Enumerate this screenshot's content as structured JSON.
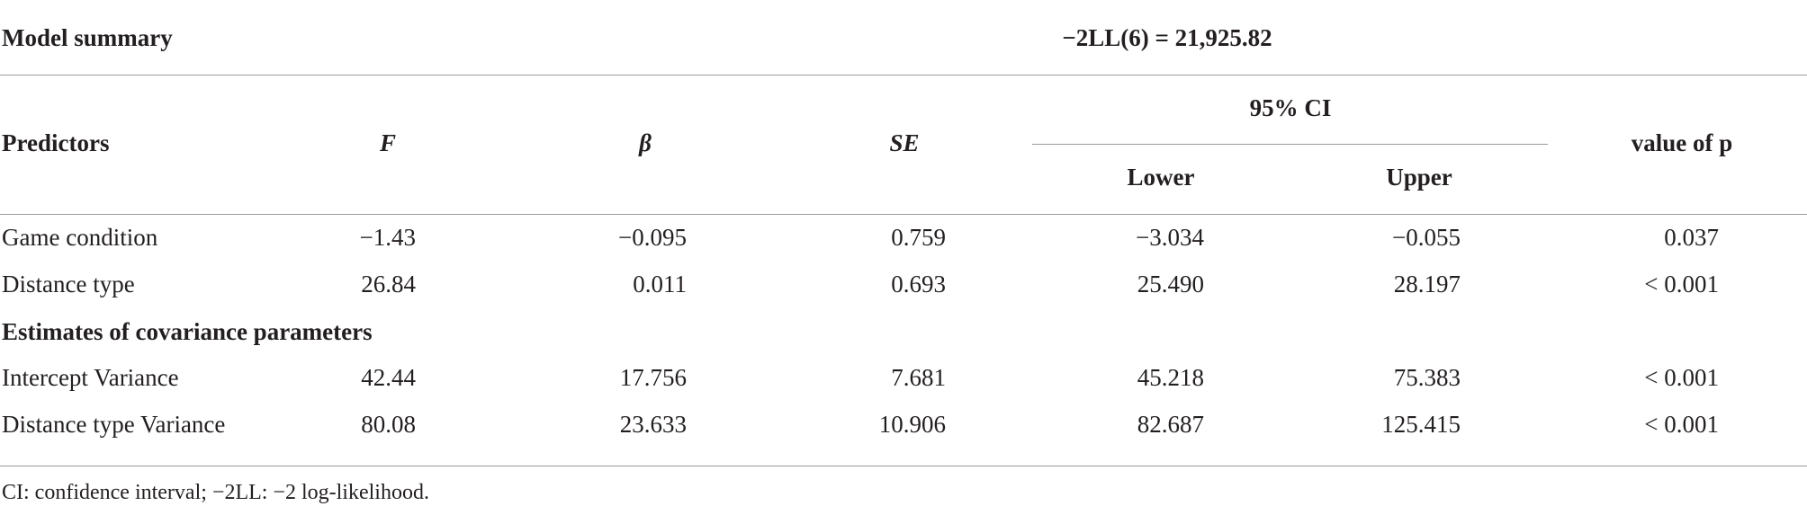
{
  "header": {
    "title": "Model summary",
    "statistic": "−2LL(6) = 21,925.82"
  },
  "table": {
    "columns": [
      "Predictors",
      "F",
      "β",
      "SE",
      "Lower",
      "Upper",
      "value of p"
    ],
    "group_header": "95% CI",
    "rows": [
      [
        "Game condition",
        "−1.43",
        "−0.095",
        "0.759",
        "−3.034",
        "−0.055",
        "0.037"
      ],
      [
        "Distance type",
        "26.84",
        "0.011",
        "0.693",
        "25.490",
        "28.197",
        "< 0.001"
      ],
      [
        "Estimates of covariance parameters"
      ],
      [
        "Intercept Variance",
        "42.44",
        "17.756",
        "7.681",
        "45.218",
        "75.383",
        "< 0.001"
      ],
      [
        "Distance type Variance",
        "80.08",
        "23.633",
        "10.906",
        "82.687",
        "125.415",
        "< 0.001"
      ]
    ]
  },
  "footnote": "CI: confidence interval; −2LL: −2 log-likelihood."
}
